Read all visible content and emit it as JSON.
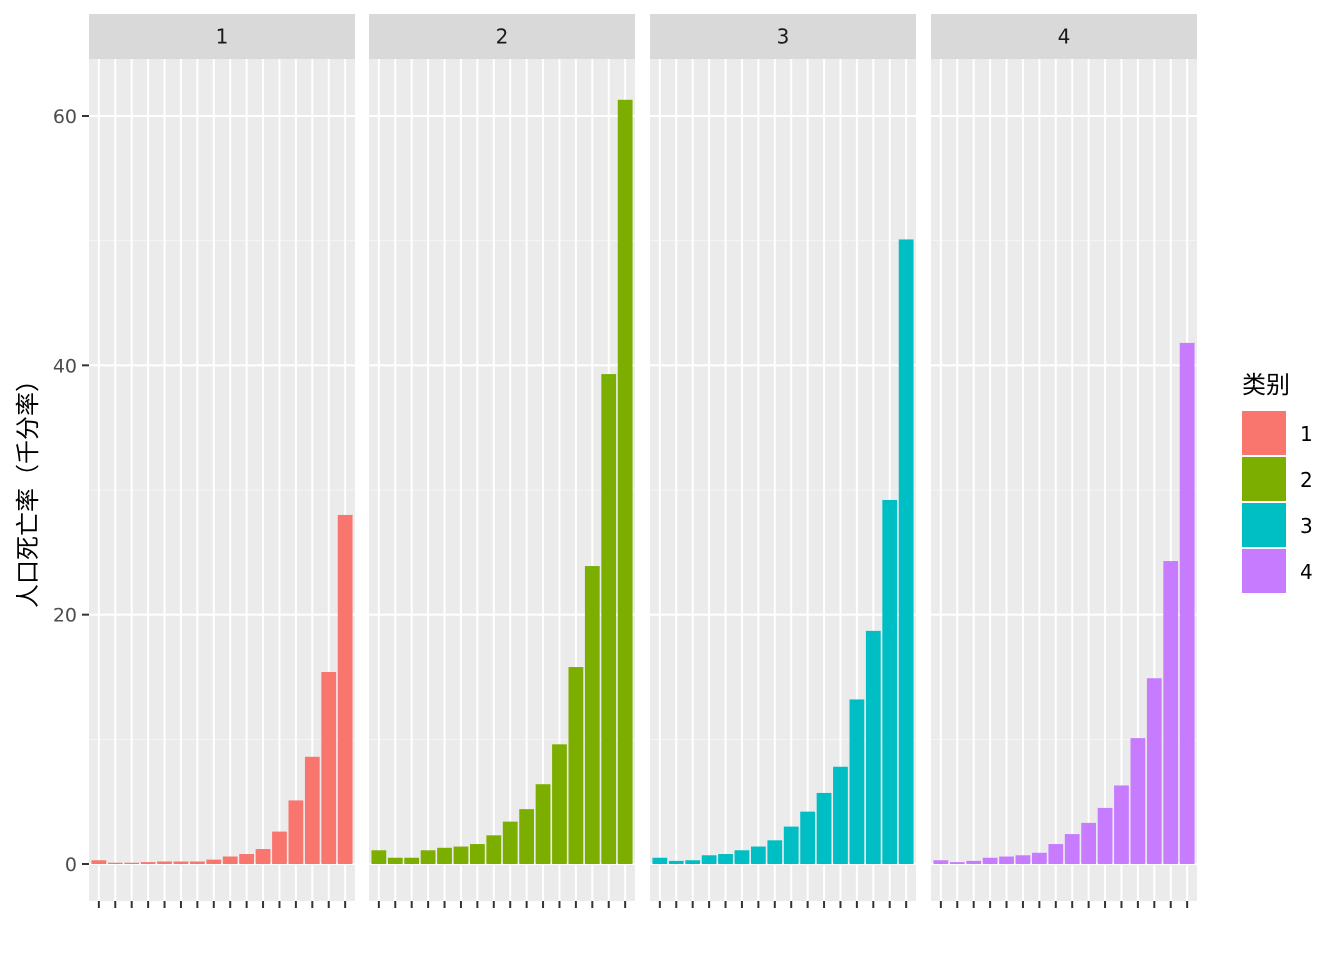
{
  "chart_data": {
    "type": "bar",
    "facet": "faceted by group (1-4), one panel per group",
    "title": "",
    "xlabel": "",
    "ylabel": "人口死亡率（千分率）",
    "ylim": [
      -3,
      66
    ],
    "yticks": [
      0,
      20,
      40,
      60
    ],
    "grid": true,
    "x_tick_labels_shown": false,
    "legend": {
      "title": "类别",
      "position": "right",
      "entries": [
        "1",
        "2",
        "3",
        "4"
      ]
    },
    "colors": [
      "#F8766D",
      "#7CAE00",
      "#00BFC4",
      "#C77CFF"
    ],
    "panels": [
      {
        "label": "1",
        "values": [
          0.3,
          0.1,
          0.1,
          0.15,
          0.2,
          0.2,
          0.2,
          0.35,
          0.6,
          0.8,
          1.2,
          2.6,
          5.1,
          8.6,
          15.4,
          28.0
        ]
      },
      {
        "label": "2",
        "values": [
          1.1,
          0.5,
          0.5,
          1.1,
          1.3,
          1.4,
          1.6,
          2.3,
          3.4,
          4.4,
          6.4,
          9.6,
          15.8,
          23.9,
          39.3,
          61.3
        ]
      },
      {
        "label": "3",
        "values": [
          0.5,
          0.25,
          0.3,
          0.7,
          0.8,
          1.1,
          1.4,
          1.9,
          3.0,
          4.2,
          5.7,
          7.8,
          13.2,
          18.7,
          29.2,
          50.1
        ]
      },
      {
        "label": "4",
        "values": [
          0.3,
          0.15,
          0.25,
          0.5,
          0.6,
          0.7,
          0.9,
          1.6,
          2.4,
          3.3,
          4.5,
          6.3,
          10.1,
          14.9,
          24.3,
          41.8
        ]
      }
    ]
  }
}
